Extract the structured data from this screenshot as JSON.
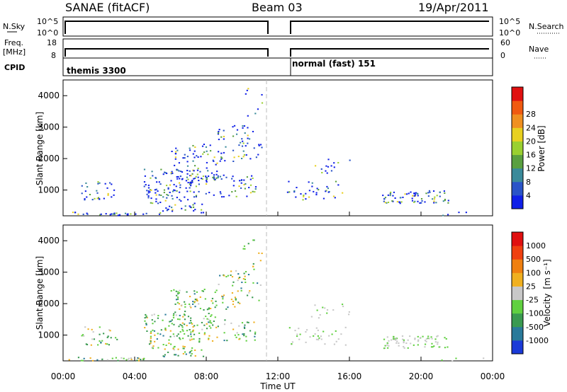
{
  "header": {
    "station": "SANAE (fitACF)",
    "beam": "Beam 03",
    "date": "19/Apr/2011"
  },
  "top_panels": {
    "nsky_label": "N.Sky",
    "nsky_ticks": [
      "10^5",
      "10^0"
    ],
    "nsearch_label": "N.Search",
    "nsearch_ticks": [
      "10^5",
      "10^0"
    ],
    "freq_label": "Freq.",
    "freq_unit": "[MHz]",
    "freq_ticks": [
      "18",
      "8"
    ],
    "nave_label": "Nave",
    "nave_ticks": [
      "60",
      "0"
    ],
    "cpid_label": "CPID",
    "cpid_modes": [
      "themis 3300",
      "normal (fast) 151"
    ]
  },
  "chart_data": [
    {
      "type": "heatmap",
      "title": "Power",
      "xlabel": "Time UT",
      "ylabel": "Slant Range [km]",
      "xlim": [
        0,
        24
      ],
      "ylim": [
        180,
        4500
      ],
      "x_ticks": [
        "00:00",
        "04:00",
        "08:00",
        "12:00",
        "16:00",
        "20:00",
        "00:00"
      ],
      "y_ticks": [
        "1000",
        "2000",
        "3000",
        "4000"
      ],
      "colorbar": {
        "label": "Power [dB]",
        "ticks": [
          "4",
          "8",
          "12",
          "16",
          "20",
          "24",
          "28"
        ],
        "colors": [
          "#1020e8",
          "#2a54c8",
          "#3a8a9a",
          "#5aa040",
          "#9ad030",
          "#e8d020",
          "#f09020",
          "#f05a10",
          "#e01010"
        ]
      },
      "data_gap_hours": [
        11.3,
        12.6
      ]
    },
    {
      "type": "heatmap",
      "title": "Velocity",
      "xlabel": "Time UT",
      "ylabel": "Slant Range [km]",
      "xlim": [
        0,
        24
      ],
      "ylim": [
        180,
        4500
      ],
      "x_ticks": [
        "00:00",
        "04:00",
        "08:00",
        "12:00",
        "16:00",
        "20:00",
        "00:00"
      ],
      "y_ticks": [
        "1000",
        "2000",
        "3000",
        "4000"
      ],
      "colorbar": {
        "label": "Velocity",
        "unit": "[m s⁻¹]",
        "ticks": [
          "1000",
          "500",
          "100",
          "25",
          "-25",
          "-100",
          "-500",
          "-1000"
        ],
        "colors": [
          "#1a3ad8",
          "#2a7a9a",
          "#3a9a50",
          "#60d040",
          "#c8c8c8",
          "#f0b020",
          "#f08010",
          "#f04010",
          "#e01010"
        ]
      },
      "data_gap_hours": [
        11.3,
        12.6
      ]
    }
  ]
}
